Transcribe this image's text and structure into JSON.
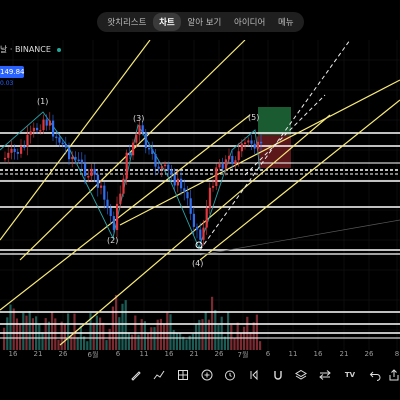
{
  "tabs": [
    {
      "label": "왓치리스트"
    },
    {
      "label": "차트"
    },
    {
      "label": "알아 보기"
    },
    {
      "label": "아이디어"
    },
    {
      "label": "메뉴"
    }
  ],
  "symbol": {
    "title": "날 · BINANCE",
    "status_color": "#26a69a"
  },
  "price": {
    "badge": "149.84",
    "sub": "0.03"
  },
  "wave_labels": [
    "(1)",
    "(2)",
    "(3)",
    "(4)",
    "(5)"
  ],
  "xaxis": {
    "labels": [
      "16",
      "21",
      "26",
      "6월",
      "6",
      "11",
      "16",
      "21",
      "26",
      "7월",
      "6",
      "11",
      "16",
      "21",
      "26",
      "8"
    ]
  },
  "colors": {
    "up": "#e0383e",
    "down": "#2f6ef0",
    "trend": "#f7e97a",
    "level": "#ffffff",
    "bg": "#000000"
  },
  "toolbar": {
    "icons": [
      "pencil-icon",
      "chart-type-icon",
      "indicators-icon",
      "add-icon",
      "alert-icon",
      "replay-icon",
      "magnet-icon",
      "layers-icon",
      "compare-icon",
      "tradingview-icon",
      "undo-icon",
      "share-icon"
    ],
    "tv_label": "TV"
  }
}
